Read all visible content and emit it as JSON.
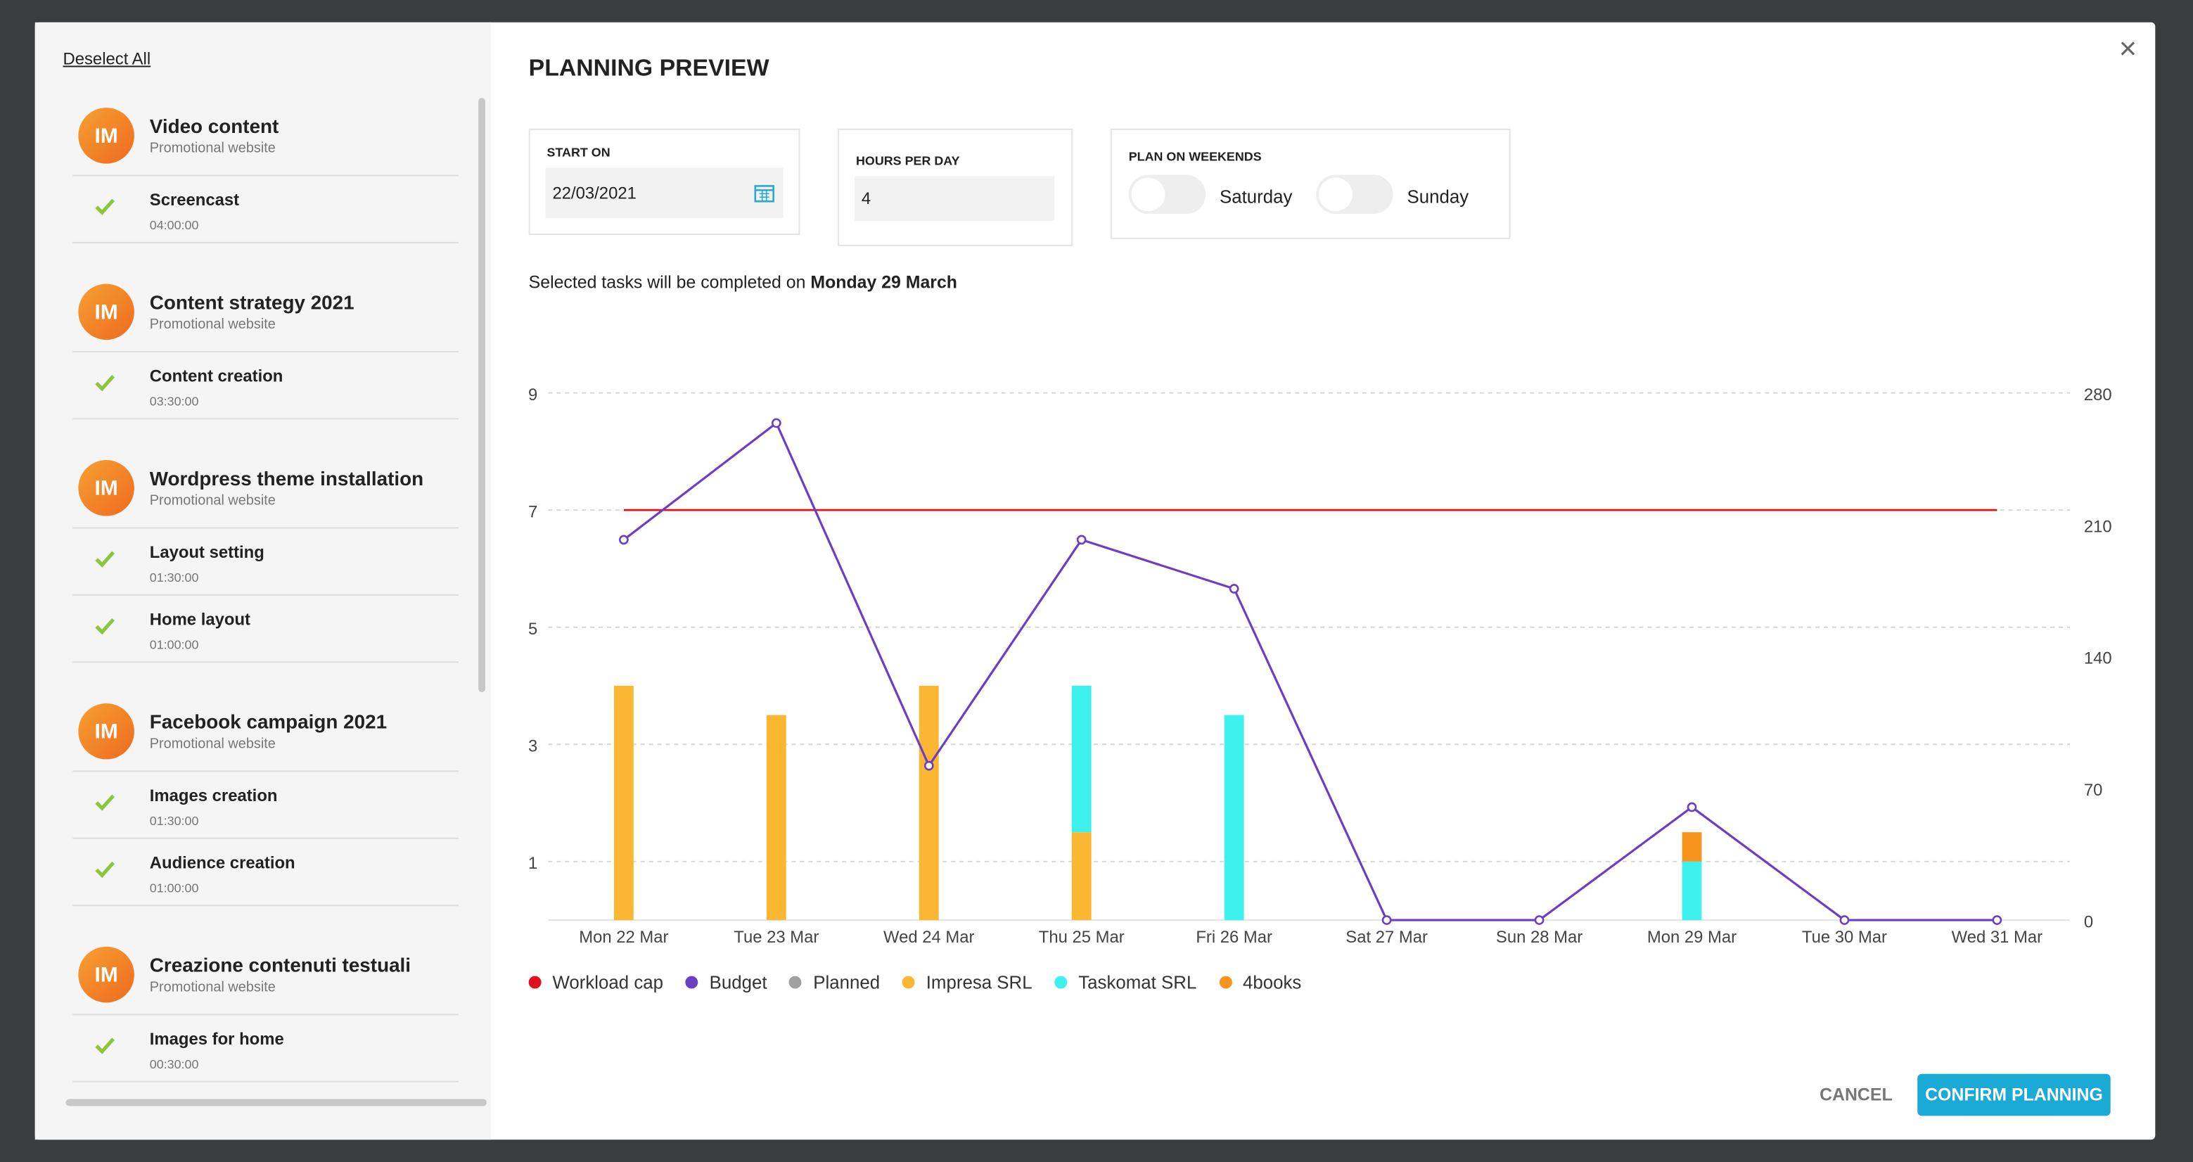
{
  "sidebar": {
    "deselect": "Deselect All",
    "groups": [
      {
        "avatar": "IM",
        "title": "Video content",
        "subtitle": "Promotional website",
        "tasks": [
          {
            "name": "Screencast",
            "time": "04:00:00"
          }
        ]
      },
      {
        "avatar": "IM",
        "title": "Content strategy 2021",
        "subtitle": "Promotional website",
        "tasks": [
          {
            "name": "Content creation",
            "time": "03:30:00"
          }
        ]
      },
      {
        "avatar": "IM",
        "title": "Wordpress theme installation",
        "subtitle": "Promotional website",
        "tasks": [
          {
            "name": "Layout setting",
            "time": "01:30:00"
          },
          {
            "name": "Home layout",
            "time": "01:00:00"
          }
        ]
      },
      {
        "avatar": "IM",
        "title": "Facebook campaign 2021",
        "subtitle": "Promotional website",
        "tasks": [
          {
            "name": "Images creation",
            "time": "01:30:00"
          },
          {
            "name": "Audience creation",
            "time": "01:00:00"
          }
        ]
      },
      {
        "avatar": "IM",
        "title": "Creazione contenuti testuali",
        "subtitle": "Promotional website",
        "tasks": [
          {
            "name": "Images for home",
            "time": "00:30:00"
          }
        ]
      }
    ]
  },
  "dialog": {
    "title": "PLANNING PREVIEW",
    "close": "×",
    "start_label": "START ON",
    "start_value": "22/03/2021",
    "hours_label": "HOURS PER DAY",
    "hours_value": "4",
    "weekends_label": "PLAN ON WEEKENDS",
    "saturday": "Saturday",
    "sunday": "Sunday",
    "summary": "Selected tasks will be completed on",
    "summary_date": "Monday 29 March",
    "cancel": "CANCEL",
    "confirm": "CONFIRM PLANNING"
  },
  "chart_data": {
    "type": "bar",
    "stacked": true,
    "categories": [
      "Mon 22 Mar",
      "Tue 23 Mar",
      "Wed 24 Mar",
      "Thu 25 Mar",
      "Fri 26 Mar",
      "Sat 27 Mar",
      "Sun 28 Mar",
      "Mon 29 Mar",
      "Tue 30 Mar",
      "Wed 31 Mar"
    ],
    "ylim": [
      0,
      9
    ],
    "yticks": [
      1,
      3,
      5,
      7,
      9
    ],
    "y2lim": [
      0,
      280
    ],
    "y2ticks": [
      0,
      70,
      140,
      210,
      280
    ],
    "grid": true,
    "series": [
      {
        "name": "Workload cap",
        "type": "line",
        "color": "#e0101e",
        "values": [
          7,
          7,
          7,
          7,
          7,
          7,
          7,
          7,
          7,
          7
        ]
      },
      {
        "name": "Budget",
        "type": "line",
        "axis": "y2",
        "color": "#6b3fc4",
        "values": [
          202,
          264,
          82,
          202,
          176,
          0,
          0,
          60,
          0,
          0
        ]
      },
      {
        "name": "Planned",
        "color": "#a0a0a0",
        "values": [
          0,
          0,
          0,
          0,
          0,
          0,
          0,
          0,
          0,
          0
        ]
      },
      {
        "name": "Impresa SRL",
        "color": "#fbb731",
        "values": [
          4,
          3.5,
          4,
          1.5,
          0,
          0,
          0,
          0,
          0,
          0
        ]
      },
      {
        "name": "Taskomat SRL",
        "color": "#3df2ee",
        "values": [
          0,
          0,
          0,
          2.5,
          3.5,
          0,
          0,
          1,
          0,
          0
        ]
      },
      {
        "name": "4books",
        "color": "#f7941d",
        "values": [
          0,
          0,
          0,
          0,
          0,
          0,
          0,
          0.5,
          0,
          0
        ]
      }
    ]
  }
}
